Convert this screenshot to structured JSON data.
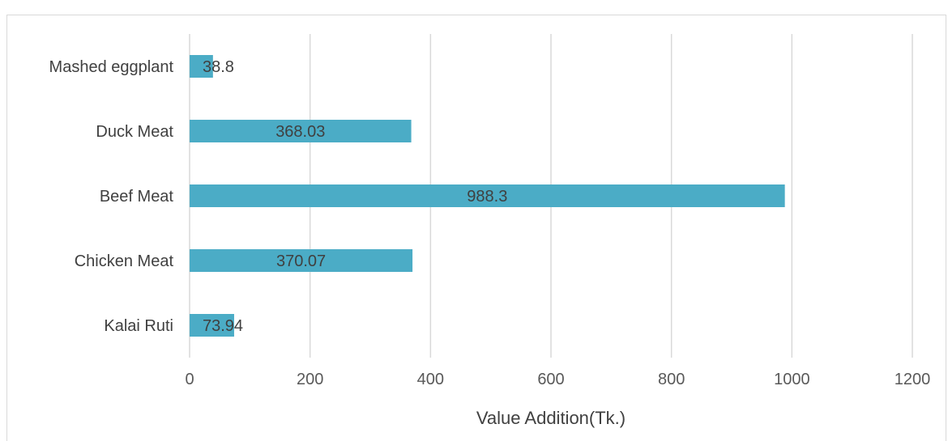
{
  "chart_data": {
    "type": "bar",
    "orientation": "horizontal",
    "categories": [
      "Mashed eggplant",
      "Duck Meat",
      "Beef Meat",
      "Chicken Meat",
      "Kalai Ruti"
    ],
    "values": [
      38.8,
      368.03,
      988.3,
      370.07,
      73.94
    ],
    "value_labels": [
      "38.8",
      "368.03",
      "988.3",
      "370.07",
      "73.94"
    ],
    "title": "",
    "xlabel": "Value Addition(Tk.)",
    "ylabel": "",
    "xlim": [
      0,
      1200
    ],
    "x_ticks": [
      "0",
      "200",
      "400",
      "600",
      "800",
      "1000",
      "1200"
    ],
    "grid": "vertical",
    "legend": "none",
    "bar_color": "#4bacc6",
    "grid_color": "#d9d9d9"
  }
}
